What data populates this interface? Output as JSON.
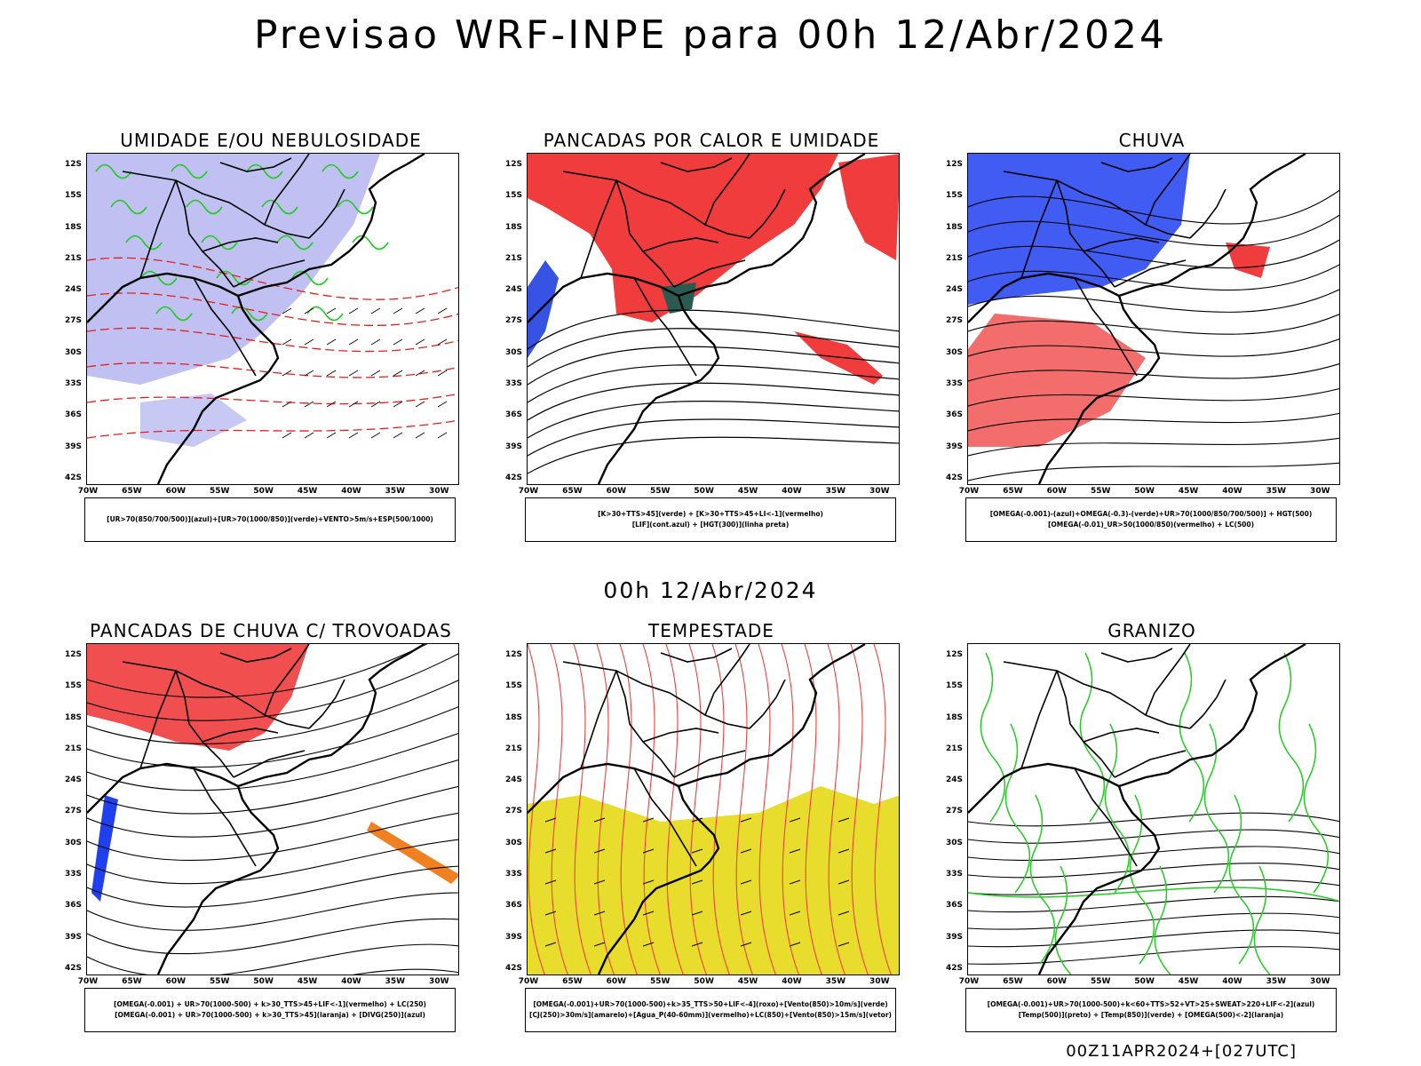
{
  "main_title": "Previsao WRF-INPE  para 00h 12/Abr/2024",
  "mid_title": "00h 12/Abr/2024",
  "footer": "00Z11APR2024+[027UTC]",
  "lat_labels": [
    "12S",
    "15S",
    "18S",
    "21S",
    "24S",
    "27S",
    "30S",
    "33S",
    "36S",
    "39S",
    "42S"
  ],
  "lon_labels": [
    "70W",
    "65W",
    "60W",
    "55W",
    "50W",
    "45W",
    "40W",
    "35W",
    "30W"
  ],
  "panels": [
    {
      "title": "UMIDADE E/OU NEBULOSIDADE",
      "legend": [
        "[UR>70(850/700/500)](azul)+[UR>70(1000/850)](verde)+VENTO>5m/s+ESP(500/1000)"
      ],
      "colors": [
        "#b0b0f0",
        "#22cc22",
        "#e02020"
      ]
    },
    {
      "title": "PANCADAS POR CALOR E UMIDADE",
      "legend": [
        "[K>30+TTS>45](verde) + [K>30+TTS>45+LI<-1](vermelho)",
        "[LIF](cont.azul) + [HGT(300)](linha preta)"
      ],
      "colors": [
        "#f03c3c",
        "#2a5a50",
        "#2040e0"
      ]
    },
    {
      "title": "CHUVA",
      "legend": [
        "[OMEGA(-0.001)-(azul)+OMEGA(-0.3)-(verde)+UR>70(1000/850/700/500)] + HGT(500)",
        "[OMEGA(-0.01)_UR>50(1000/850)(vermelho) + LC(500)"
      ],
      "colors": [
        "#2040f0",
        "#f03c3c",
        "#22cc22"
      ]
    },
    {
      "title": "PANCADAS DE CHUVA C/ TROVOADAS",
      "legend": [
        "[OMEGA(-0.001) + UR>70(1000-500) + k>30_TTS>45+LIF<-1](vermelho) + LC(250)",
        "[OMEGA(-0.001) + UR>70(1000-500) + k>30_TTS>45](laranja) + [DIVG(250)](azul)"
      ],
      "colors": [
        "#f03c3c",
        "#f08020",
        "#2040f0"
      ]
    },
    {
      "title": "TEMPESTADE",
      "legend": [
        "[OMEGA(-0.001)+UR>70(1000-500)+k>35_TTS>50+LIF<-4](roxo)+[Vento(850)>10m/s](verde)",
        "[CJ(250)>30m/s](amarelo)+[Agua_P(40-60mm)](vermelho)+LC(850)+[Vento(850)>15m/s](vetor)"
      ],
      "colors": [
        "#e8dc2c",
        "#f04040",
        "#22aa22"
      ]
    },
    {
      "title": "GRANIZO",
      "legend": [
        "[OMEGA(-0.001)+UR>70(1000-500)+k<60+TTS>52+VT>25+SWEAT>220+LIF<-2](azul)",
        "[Temp(500)](preto) + [Temp(850)](verde) + [OMEGA(500)<-2](laranja)"
      ],
      "colors": [
        "#22cc22",
        "#000000",
        "#f08020"
      ]
    }
  ]
}
